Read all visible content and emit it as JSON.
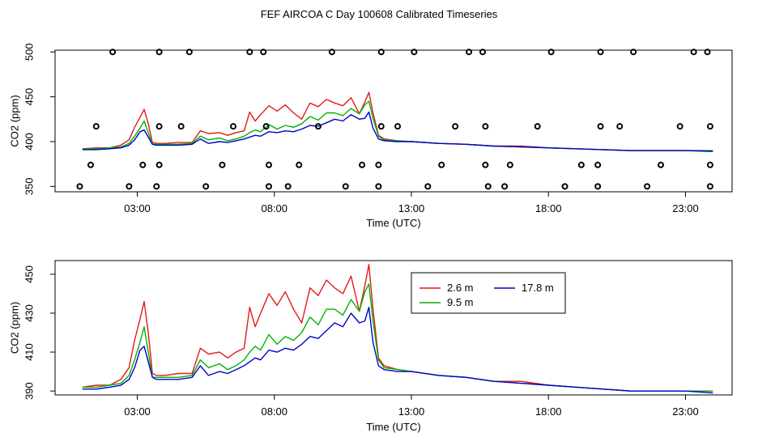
{
  "title": "FEF AIRCOA C  Day 100608  Calibrated Timeseries",
  "colors": {
    "2.6 m": "#e41a1c",
    "9.5 m": "#00b300",
    "17.8 m": "#0000cc"
  },
  "chart_data": [
    {
      "type": "line",
      "panel": "top",
      "xlabel": "Time (UTC)",
      "ylabel": "CO2 (ppm)",
      "xlim": [
        0,
        24.7
      ],
      "ylim": [
        344,
        502
      ],
      "xticks": [
        3,
        8,
        13,
        18,
        23
      ],
      "xtick_labels": [
        "03:00",
        "08:00",
        "13:00",
        "18:00",
        "23:00"
      ],
      "yticks": [
        350,
        400,
        450,
        500
      ],
      "ytick_labels": [
        "350",
        "400",
        "450",
        "500"
      ],
      "series": [
        {
          "name": "2.6 m",
          "color": "#e41a1c",
          "x": [
            1,
            1.5,
            2,
            2.4,
            2.7,
            2.9,
            3.1,
            3.25,
            3.4,
            3.55,
            3.7,
            4,
            4.5,
            5,
            5.3,
            5.6,
            6,
            6.3,
            6.6,
            6.9,
            7.1,
            7.3,
            7.5,
            7.8,
            8.1,
            8.4,
            8.7,
            9,
            9.3,
            9.6,
            9.9,
            10.2,
            10.5,
            10.8,
            11.1,
            11.3,
            11.45,
            11.6,
            11.8,
            12,
            12.5,
            13,
            14,
            15,
            16,
            17,
            18,
            19,
            20,
            21,
            22,
            23,
            24
          ],
          "y": [
            392,
            393,
            393,
            396,
            402,
            416,
            427,
            436,
            420,
            399,
            398,
            398,
            399,
            399,
            412,
            409,
            410,
            407,
            410,
            412,
            433,
            423,
            430,
            440,
            434,
            441,
            432,
            425,
            443,
            439,
            447,
            443,
            440,
            449,
            431,
            444,
            455,
            432,
            407,
            403,
            401,
            400,
            398,
            397,
            395,
            395,
            393,
            392,
            391,
            390,
            390,
            390,
            390
          ]
        },
        {
          "name": "9.5 m",
          "color": "#00b300",
          "x": [
            1,
            1.5,
            2,
            2.4,
            2.7,
            2.9,
            3.1,
            3.25,
            3.4,
            3.55,
            3.7,
            4,
            4.5,
            5,
            5.3,
            5.6,
            6,
            6.3,
            6.6,
            6.9,
            7.1,
            7.3,
            7.5,
            7.8,
            8.1,
            8.4,
            8.7,
            9,
            9.3,
            9.6,
            9.9,
            10.2,
            10.5,
            10.8,
            11.1,
            11.3,
            11.45,
            11.6,
            11.8,
            12,
            12.5,
            13,
            14,
            15,
            16,
            17,
            18,
            19,
            20,
            21,
            22,
            23,
            24
          ],
          "y": [
            392,
            392,
            393,
            394,
            398,
            406,
            415,
            423,
            410,
            397,
            397,
            397,
            397,
            398,
            406,
            402,
            404,
            401,
            403,
            406,
            410,
            413,
            411,
            419,
            414,
            418,
            416,
            420,
            428,
            424,
            432,
            432,
            429,
            437,
            431,
            441,
            445,
            426,
            406,
            402,
            401,
            400,
            398,
            397,
            395,
            394,
            393,
            392,
            391,
            390,
            390,
            390,
            390
          ]
        },
        {
          "name": "17.8 m",
          "color": "#0000cc",
          "x": [
            1,
            1.5,
            2,
            2.4,
            2.7,
            2.9,
            3.1,
            3.25,
            3.4,
            3.55,
            3.7,
            4,
            4.5,
            5,
            5.3,
            5.6,
            6,
            6.3,
            6.6,
            6.9,
            7.1,
            7.3,
            7.5,
            7.8,
            8.1,
            8.4,
            8.7,
            9,
            9.3,
            9.6,
            9.9,
            10.2,
            10.5,
            10.8,
            11.1,
            11.3,
            11.45,
            11.6,
            11.8,
            12,
            12.5,
            13,
            14,
            15,
            16,
            17,
            18,
            19,
            20,
            21,
            22,
            23,
            24
          ],
          "y": [
            391,
            391,
            392,
            393,
            396,
            402,
            411,
            413,
            405,
            397,
            396,
            396,
            396,
            397,
            403,
            398,
            400,
            399,
            401,
            403,
            405,
            407,
            406,
            411,
            410,
            412,
            411,
            414,
            418,
            417,
            421,
            425,
            423,
            430,
            425,
            426,
            433,
            415,
            403,
            401,
            400,
            400,
            398,
            397,
            395,
            394,
            393,
            392,
            391,
            390,
            390,
            390,
            389
          ]
        }
      ],
      "markers": {
        "shape": "circle",
        "points": [
          [
            2.1,
            500
          ],
          [
            3.8,
            500
          ],
          [
            4.9,
            500
          ],
          [
            7.1,
            500
          ],
          [
            7.6,
            500
          ],
          [
            10.1,
            500
          ],
          [
            11.9,
            500
          ],
          [
            13.1,
            500
          ],
          [
            15.1,
            500
          ],
          [
            15.6,
            500
          ],
          [
            18.1,
            500
          ],
          [
            19.9,
            500
          ],
          [
            21.1,
            500
          ],
          [
            23.3,
            500
          ],
          [
            23.8,
            500
          ],
          [
            1.5,
            417
          ],
          [
            3.8,
            417
          ],
          [
            4.6,
            417
          ],
          [
            6.5,
            417
          ],
          [
            7.7,
            417
          ],
          [
            9.6,
            417
          ],
          [
            11.9,
            417
          ],
          [
            12.5,
            417
          ],
          [
            14.6,
            417
          ],
          [
            15.7,
            417
          ],
          [
            17.6,
            417
          ],
          [
            19.9,
            417
          ],
          [
            20.6,
            417
          ],
          [
            22.8,
            417
          ],
          [
            23.9,
            417
          ],
          [
            1.3,
            374
          ],
          [
            3.2,
            374
          ],
          [
            3.8,
            374
          ],
          [
            6.1,
            374
          ],
          [
            7.8,
            374
          ],
          [
            8.9,
            374
          ],
          [
            11.2,
            374
          ],
          [
            11.8,
            374
          ],
          [
            14.1,
            374
          ],
          [
            15.7,
            374
          ],
          [
            16.6,
            374
          ],
          [
            19.2,
            374
          ],
          [
            19.8,
            374
          ],
          [
            22.1,
            374
          ],
          [
            23.9,
            374
          ],
          [
            0.9,
            350
          ],
          [
            2.7,
            350
          ],
          [
            3.7,
            350
          ],
          [
            5.5,
            350
          ],
          [
            7.8,
            350
          ],
          [
            8.5,
            350
          ],
          [
            10.6,
            350
          ],
          [
            11.8,
            350
          ],
          [
            13.6,
            350
          ],
          [
            15.8,
            350
          ],
          [
            16.4,
            350
          ],
          [
            18.6,
            350
          ],
          [
            19.8,
            350
          ],
          [
            21.6,
            350
          ],
          [
            23.9,
            350
          ]
        ]
      }
    },
    {
      "type": "line",
      "panel": "bottom",
      "xlabel": "Time (UTC)",
      "ylabel": "CO2 (ppm)",
      "xlim": [
        0,
        24.7
      ],
      "ylim": [
        388,
        457
      ],
      "xticks": [
        3,
        8,
        13,
        18,
        23
      ],
      "xtick_labels": [
        "03:00",
        "08:00",
        "13:00",
        "18:00",
        "23:00"
      ],
      "yticks": [
        390,
        410,
        430,
        450
      ],
      "ytick_labels": [
        "390",
        "410",
        "430",
        "450"
      ],
      "legend": {
        "position": "top-center",
        "entries": [
          "2.6 m",
          "17.8 m",
          "9.5 m"
        ]
      },
      "series": [
        {
          "name": "2.6 m",
          "color": "#e41a1c",
          "x": [
            1,
            1.5,
            2,
            2.4,
            2.7,
            2.9,
            3.1,
            3.25,
            3.4,
            3.55,
            3.7,
            4,
            4.5,
            5,
            5.3,
            5.6,
            6,
            6.3,
            6.6,
            6.9,
            7.1,
            7.3,
            7.5,
            7.8,
            8.1,
            8.4,
            8.7,
            9,
            9.3,
            9.6,
            9.9,
            10.2,
            10.5,
            10.8,
            11.1,
            11.3,
            11.45,
            11.6,
            11.8,
            12,
            12.5,
            13,
            14,
            15,
            16,
            17,
            18,
            19,
            20,
            21,
            22,
            23,
            24
          ],
          "y": [
            392,
            393,
            393,
            396,
            402,
            416,
            427,
            436,
            420,
            399,
            398,
            398,
            399,
            399,
            412,
            409,
            410,
            407,
            410,
            412,
            433,
            423,
            430,
            440,
            434,
            441,
            432,
            425,
            443,
            439,
            447,
            443,
            440,
            449,
            431,
            444,
            455,
            432,
            407,
            403,
            401,
            400,
            398,
            397,
            395,
            395,
            393,
            392,
            391,
            390,
            390,
            390,
            390
          ]
        },
        {
          "name": "9.5 m",
          "color": "#00b300",
          "x": [
            1,
            1.5,
            2,
            2.4,
            2.7,
            2.9,
            3.1,
            3.25,
            3.4,
            3.55,
            3.7,
            4,
            4.5,
            5,
            5.3,
            5.6,
            6,
            6.3,
            6.6,
            6.9,
            7.1,
            7.3,
            7.5,
            7.8,
            8.1,
            8.4,
            8.7,
            9,
            9.3,
            9.6,
            9.9,
            10.2,
            10.5,
            10.8,
            11.1,
            11.3,
            11.45,
            11.6,
            11.8,
            12,
            12.5,
            13,
            14,
            15,
            16,
            17,
            18,
            19,
            20,
            21,
            22,
            23,
            24
          ],
          "y": [
            392,
            392,
            393,
            394,
            398,
            406,
            415,
            423,
            410,
            397,
            397,
            397,
            397,
            398,
            406,
            402,
            404,
            401,
            403,
            406,
            410,
            413,
            411,
            419,
            414,
            418,
            416,
            420,
            428,
            424,
            432,
            432,
            429,
            437,
            431,
            441,
            445,
            426,
            406,
            402,
            401,
            400,
            398,
            397,
            395,
            394,
            393,
            392,
            391,
            390,
            390,
            390,
            390
          ]
        },
        {
          "name": "17.8 m",
          "color": "#0000cc",
          "x": [
            1,
            1.5,
            2,
            2.4,
            2.7,
            2.9,
            3.1,
            3.25,
            3.4,
            3.55,
            3.7,
            4,
            4.5,
            5,
            5.3,
            5.6,
            6,
            6.3,
            6.6,
            6.9,
            7.1,
            7.3,
            7.5,
            7.8,
            8.1,
            8.4,
            8.7,
            9,
            9.3,
            9.6,
            9.9,
            10.2,
            10.5,
            10.8,
            11.1,
            11.3,
            11.45,
            11.6,
            11.8,
            12,
            12.5,
            13,
            14,
            15,
            16,
            17,
            18,
            19,
            20,
            21,
            22,
            23,
            24
          ],
          "y": [
            391,
            391,
            392,
            393,
            396,
            402,
            411,
            413,
            405,
            397,
            396,
            396,
            396,
            397,
            403,
            398,
            400,
            399,
            401,
            403,
            405,
            407,
            406,
            411,
            410,
            412,
            411,
            414,
            418,
            417,
            421,
            425,
            423,
            430,
            425,
            426,
            433,
            415,
            403,
            401,
            400,
            400,
            398,
            397,
            395,
            394,
            393,
            392,
            391,
            390,
            390,
            390,
            389
          ]
        }
      ]
    }
  ]
}
